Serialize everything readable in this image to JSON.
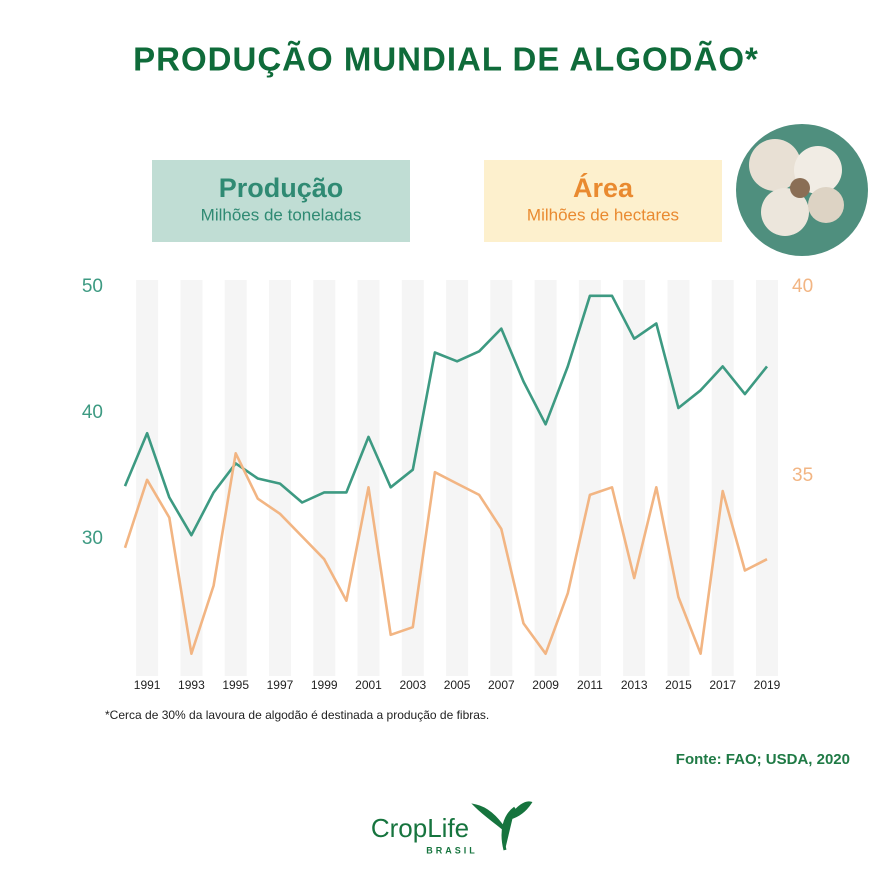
{
  "chart_data": {
    "type": "line",
    "title": "PRODUÇÃO MUNDIAL DE ALGODÃO*",
    "x": [
      1990,
      1991,
      1992,
      1993,
      1994,
      1995,
      1996,
      1997,
      1998,
      1999,
      2000,
      2001,
      2002,
      2003,
      2004,
      2005,
      2006,
      2007,
      2008,
      2009,
      2010,
      2011,
      2012,
      2013,
      2014,
      2015,
      2016,
      2017,
      2018,
      2019
    ],
    "xlim": [
      1990,
      2019
    ],
    "xticks": [
      1991,
      1993,
      1995,
      1997,
      1999,
      2001,
      2003,
      2005,
      2007,
      2009,
      2011,
      2013,
      2015,
      2017,
      2019
    ],
    "ylim": [
      20,
      50
    ],
    "yticks": [
      30,
      40,
      50
    ],
    "y2lim": [
      30,
      40
    ],
    "y2ticks": [
      35,
      40
    ],
    "series": [
      {
        "name": "Produção",
        "unit": "Milhões de toneladas",
        "color": "#3d9a82",
        "axis": "y",
        "values": [
          34.2,
          38.4,
          33.3,
          30.3,
          33.7,
          36.0,
          34.8,
          34.4,
          32.9,
          33.7,
          33.7,
          38.1,
          34.1,
          35.5,
          44.8,
          44.1,
          44.9,
          46.7,
          42.5,
          39.1,
          43.7,
          49.3,
          49.3,
          45.9,
          47.1,
          40.4,
          41.8,
          43.7,
          41.5,
          43.7
        ]
      },
      {
        "name": "Área",
        "unit": "Milhões de hectares",
        "color": "#f2b583",
        "axis": "y2",
        "values": [
          33.1,
          34.9,
          33.9,
          30.3,
          32.1,
          35.6,
          34.4,
          34.0,
          33.4,
          32.8,
          31.7,
          34.7,
          30.8,
          31.0,
          35.1,
          34.8,
          34.5,
          33.6,
          31.1,
          30.3,
          31.9,
          34.5,
          34.7,
          32.3,
          34.7,
          31.8,
          30.3,
          34.6,
          32.5,
          32.8
        ]
      }
    ],
    "footnote": "*Cerca de 30% da lavoura de algodão é destinada a produção de fibras.",
    "source": "Fonte: FAO; USDA, 2020"
  },
  "logo": {
    "name": "CropLife",
    "sub": "BRASIL"
  }
}
